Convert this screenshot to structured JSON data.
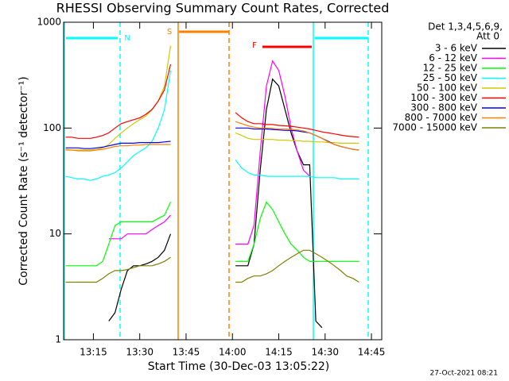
{
  "chart_data": {
    "type": "line",
    "title": "RHESSI Observing Summary Count Rates, Corrected",
    "x_label": "Start Time (30-Dec-03 13:05:22)",
    "y_label": "Corrected Count Rate (s⁻¹ detector⁻¹)",
    "legend_title": [
      "Det 1,3,4,5,6,9,",
      "Att 0"
    ],
    "footer": "27-Oct-2021 08:21",
    "flags": {
      "night": "N",
      "saa": "S",
      "flare": "F"
    },
    "log_y": true,
    "xlim": [
      "13:05:22",
      "14:48:20"
    ],
    "xticks": [
      "13:15",
      "13:30",
      "13:45",
      "14:00",
      "14:15",
      "14:30",
      "14:45"
    ],
    "ylim": [
      1,
      1000
    ],
    "yticks": [
      1,
      10,
      100,
      1000
    ],
    "x": [
      "13:06",
      "13:08",
      "13:10",
      "13:12",
      "13:14",
      "13:16",
      "13:18",
      "13:20",
      "13:22",
      "13:24",
      "13:26",
      "13:28",
      "13:30",
      "13:32",
      "13:34",
      "13:36",
      "13:38",
      "13:40",
      "13:50",
      "14:01",
      "14:03",
      "14:05",
      "14:07",
      "14:09",
      "14:11",
      "14:13",
      "14:15",
      "14:17",
      "14:19",
      "14:21",
      "14:23",
      "14:25",
      "14:27",
      "14:29",
      "14:31",
      "14:33",
      "14:35",
      "14:37",
      "14:39",
      "14:41"
    ],
    "series": [
      {
        "name": "3 - 6 keV",
        "color": "#000000",
        "values": [
          null,
          null,
          null,
          null,
          null,
          null,
          null,
          1.5,
          1.8,
          3,
          4.5,
          5,
          5,
          5.2,
          5.5,
          6,
          7,
          10,
          null,
          5,
          5,
          5,
          8,
          40,
          150,
          290,
          250,
          150,
          90,
          60,
          45,
          45,
          1.5,
          1.3,
          null,
          null,
          null,
          null,
          null,
          null
        ]
      },
      {
        "name": "6 - 12 keV",
        "color": "#ff00ff",
        "values": [
          null,
          null,
          null,
          null,
          null,
          null,
          null,
          9,
          9,
          9,
          10,
          10,
          10,
          10,
          11,
          12,
          13,
          15,
          null,
          8,
          8,
          8,
          12,
          60,
          250,
          430,
          350,
          200,
          100,
          60,
          40,
          35,
          null,
          null,
          null,
          null,
          null,
          null,
          null,
          null
        ]
      },
      {
        "name": "12 - 25 keV",
        "color": "#00ff00",
        "values": [
          5,
          5,
          5,
          5,
          5,
          5,
          5.5,
          8,
          12,
          13,
          13,
          13,
          13,
          13,
          13,
          14,
          15,
          20,
          null,
          5.5,
          5.5,
          5.5,
          8,
          14,
          20,
          17,
          13,
          10,
          8,
          7,
          6,
          5.5,
          5.5,
          5.5,
          5.5,
          5.5,
          5.5,
          5.5,
          5.5,
          5.5
        ]
      },
      {
        "name": "25 - 50 keV",
        "color": "#00ffff",
        "values": [
          35,
          34,
          33,
          33,
          32,
          33,
          35,
          36,
          38,
          42,
          48,
          55,
          60,
          65,
          75,
          100,
          150,
          350,
          null,
          50,
          42,
          38,
          36,
          36,
          35,
          35,
          35,
          35,
          35,
          35,
          35,
          35,
          34,
          34,
          34,
          34,
          33,
          33,
          33,
          33
        ]
      },
      {
        "name": "50 - 100 keV",
        "color": "#d2c800",
        "values": [
          63,
          62,
          62,
          62,
          62,
          63,
          65,
          70,
          80,
          90,
          100,
          110,
          120,
          130,
          150,
          180,
          250,
          600,
          null,
          90,
          85,
          80,
          78,
          78,
          78,
          78,
          77,
          77,
          76,
          76,
          75,
          75,
          74,
          74,
          73,
          73,
          72,
          72,
          72,
          72
        ]
      },
      {
        "name": "100 - 300 keV",
        "color": "#ff0000",
        "values": [
          82,
          82,
          80,
          80,
          80,
          82,
          85,
          90,
          100,
          110,
          115,
          120,
          125,
          135,
          150,
          180,
          230,
          400,
          null,
          140,
          125,
          115,
          110,
          110,
          108,
          108,
          106,
          105,
          104,
          102,
          100,
          98,
          95,
          92,
          90,
          88,
          86,
          84,
          83,
          82
        ]
      },
      {
        "name": "300 - 800 keV",
        "color": "#0000ff",
        "values": [
          65,
          65,
          65,
          64,
          64,
          65,
          66,
          68,
          70,
          72,
          72,
          72,
          73,
          73,
          73,
          73,
          74,
          75,
          null,
          100,
          100,
          100,
          98,
          98,
          98,
          97,
          96,
          95,
          95,
          94,
          92,
          90,
          85,
          80,
          75,
          70,
          67,
          65,
          63,
          62
        ]
      },
      {
        "name": "800 - 7000 keV",
        "color": "#ff8000",
        "values": [
          62,
          62,
          61,
          61,
          61,
          62,
          63,
          65,
          67,
          68,
          68,
          69,
          69,
          70,
          70,
          70,
          70,
          70,
          null,
          115,
          110,
          105,
          102,
          100,
          100,
          99,
          98,
          98,
          97,
          96,
          94,
          90,
          85,
          80,
          74,
          70,
          67,
          65,
          63,
          62
        ]
      },
      {
        "name": "7000 - 15000 keV",
        "color": "#808000",
        "values": [
          3.5,
          3.5,
          3.5,
          3.5,
          3.5,
          3.5,
          3.8,
          4.2,
          4.5,
          4.5,
          4.6,
          4.8,
          5,
          5,
          5,
          5.2,
          5.5,
          6,
          null,
          3.5,
          3.5,
          3.8,
          4,
          4,
          4.2,
          4.5,
          5,
          5.5,
          6,
          6.5,
          7,
          7,
          6.5,
          6,
          5.5,
          5,
          4.5,
          4,
          3.8,
          3.5
        ]
      }
    ]
  }
}
